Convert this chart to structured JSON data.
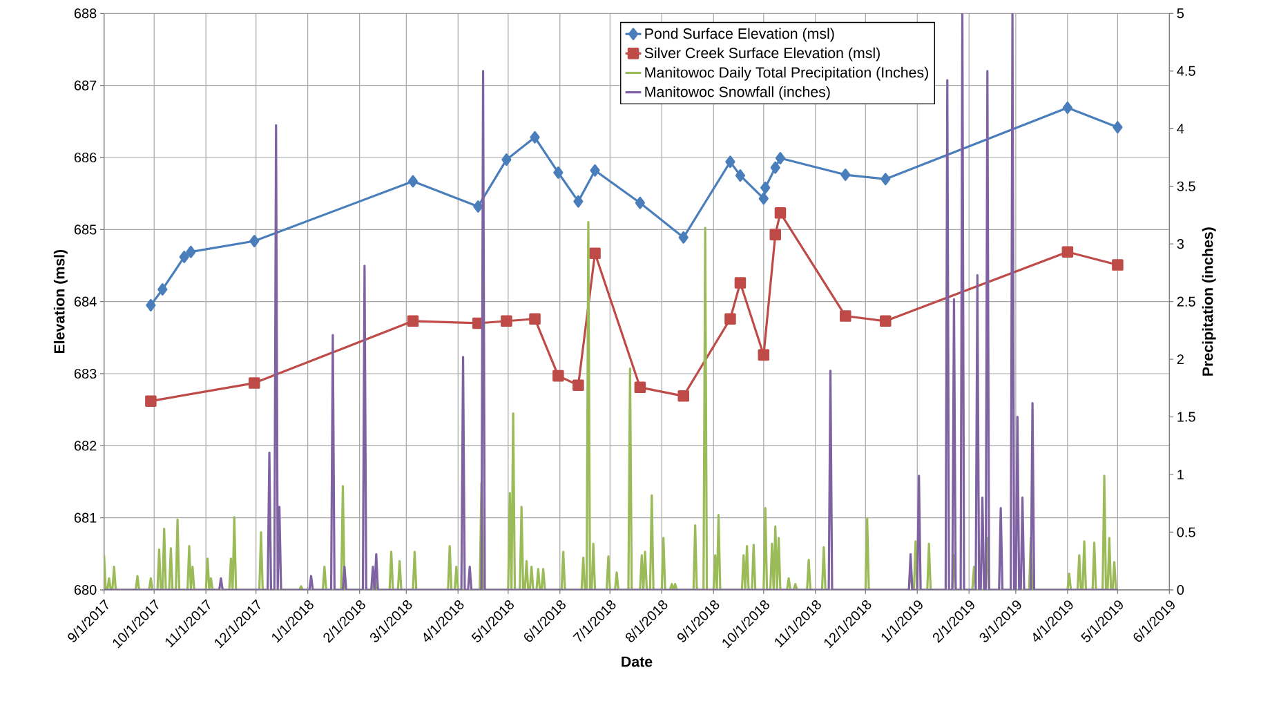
{
  "chart_data": {
    "type": "line",
    "xlabel": "Date",
    "ylabel": "Elevation (msl)",
    "y2label": "Precipitation (inches)",
    "xlim": [
      "2017-09-01",
      "2019-06-01"
    ],
    "xticks": [
      {
        "value": "2017-09-01",
        "label": "9/1/2017"
      },
      {
        "value": "2017-10-01",
        "label": "10/1/2017"
      },
      {
        "value": "2017-11-01",
        "label": "11/1/2017"
      },
      {
        "value": "2017-12-01",
        "label": "12/1/2017"
      },
      {
        "value": "2018-01-01",
        "label": "1/1/2018"
      },
      {
        "value": "2018-02-01",
        "label": "2/1/2018"
      },
      {
        "value": "2018-03-01",
        "label": "3/1/2018"
      },
      {
        "value": "2018-04-01",
        "label": "4/1/2018"
      },
      {
        "value": "2018-05-01",
        "label": "5/1/2018"
      },
      {
        "value": "2018-06-01",
        "label": "6/1/2018"
      },
      {
        "value": "2018-07-01",
        "label": "7/1/2018"
      },
      {
        "value": "2018-08-01",
        "label": "8/1/2018"
      },
      {
        "value": "2018-09-01",
        "label": "9/1/2018"
      },
      {
        "value": "2018-10-01",
        "label": "10/1/2018"
      },
      {
        "value": "2018-11-01",
        "label": "11/1/2018"
      },
      {
        "value": "2018-12-01",
        "label": "12/1/2018"
      },
      {
        "value": "2019-01-01",
        "label": "1/1/2019"
      },
      {
        "value": "2019-02-01",
        "label": "2/1/2019"
      },
      {
        "value": "2019-03-01",
        "label": "3/1/2019"
      },
      {
        "value": "2019-04-01",
        "label": "4/1/2019"
      },
      {
        "value": "2019-05-01",
        "label": "5/1/2019"
      },
      {
        "value": "2019-06-01",
        "label": "6/1/2019"
      }
    ],
    "ylim": [
      680,
      688
    ],
    "yticks": [
      680,
      681,
      682,
      683,
      684,
      685,
      686,
      687,
      688
    ],
    "y2lim": [
      0,
      5
    ],
    "y2ticks": [
      0,
      0.5,
      1,
      1.5,
      2,
      2.5,
      3,
      3.5,
      4,
      4.5,
      5
    ],
    "grid": true,
    "legend": "top right",
    "series": [
      {
        "name": "Pond Surface Elevation (msl)",
        "color": "#4a7ebb",
        "marker": "diamond",
        "x": [
          "2017-09-29",
          "2017-10-06",
          "2017-10-19",
          "2017-10-23",
          "2017-11-30",
          "2018-03-05",
          "2018-04-13",
          "2018-04-30",
          "2018-05-17",
          "2018-05-31",
          "2018-06-12",
          "2018-06-22",
          "2018-07-19",
          "2018-08-14",
          "2018-09-11",
          "2018-09-17",
          "2018-10-01",
          "2018-10-02",
          "2018-10-08",
          "2018-10-11",
          "2018-11-19",
          "2018-12-13",
          "2019-04-01",
          "2019-05-01"
        ],
        "values": [
          683.95,
          684.17,
          684.62,
          684.69,
          684.84,
          685.67,
          685.32,
          685.97,
          686.28,
          685.79,
          685.39,
          685.82,
          685.37,
          684.89,
          685.94,
          685.75,
          685.43,
          685.58,
          685.86,
          685.99,
          685.76,
          685.7,
          686.69,
          686.42
        ]
      },
      {
        "name": "Silver Creek Surface Elevation (msl)",
        "color": "#be4b48",
        "marker": "square",
        "x": [
          "2017-09-29",
          "2017-11-30",
          "2018-03-05",
          "2018-04-13",
          "2018-04-30",
          "2018-05-17",
          "2018-05-31",
          "2018-06-12",
          "2018-06-22",
          "2018-07-19",
          "2018-08-14",
          "2018-09-11",
          "2018-09-17",
          "2018-10-01",
          "2018-10-08",
          "2018-10-11",
          "2018-11-19",
          "2018-12-13",
          "2019-04-01",
          "2019-05-01"
        ],
        "values": [
          682.62,
          682.87,
          683.73,
          683.7,
          683.73,
          683.76,
          682.97,
          682.84,
          684.67,
          682.81,
          682.69,
          683.76,
          684.26,
          683.26,
          684.93,
          685.23,
          683.8,
          683.73,
          684.69,
          684.51
        ]
      },
      {
        "name": "Manitowoc Daily Total Precipitation (Inches)",
        "color": "#9bbb59",
        "axis": "y2",
        "x": [
          "2017-09-01",
          "2017-09-02",
          "2017-09-03",
          "2017-09-04",
          "2017-09-05",
          "2017-09-06",
          "2017-09-07",
          "2017-09-08",
          "2017-09-20",
          "2017-09-21",
          "2017-09-22",
          "2017-09-28",
          "2017-09-29",
          "2017-09-30",
          "2017-10-03",
          "2017-10-04",
          "2017-10-05",
          "2017-10-06",
          "2017-10-07",
          "2017-10-08",
          "2017-10-10",
          "2017-10-11",
          "2017-10-12",
          "2017-10-14",
          "2017-10-15",
          "2017-10-16",
          "2017-10-21",
          "2017-10-22",
          "2017-10-23",
          "2017-10-24",
          "2017-10-25",
          "2017-11-01",
          "2017-11-02",
          "2017-11-03",
          "2017-11-04",
          "2017-11-05",
          "2017-11-15",
          "2017-11-16",
          "2017-11-17",
          "2017-11-18",
          "2017-11-19",
          "2017-12-03",
          "2017-12-04",
          "2017-12-05",
          "2017-12-27",
          "2017-12-28",
          "2017-12-29",
          "2018-01-10",
          "2018-01-11",
          "2018-01-12",
          "2018-01-21",
          "2018-01-22",
          "2018-01-23",
          "2018-02-09",
          "2018-02-10",
          "2018-02-11",
          "2018-02-19",
          "2018-02-20",
          "2018-02-21",
          "2018-02-24",
          "2018-02-25",
          "2018-02-26",
          "2018-03-05",
          "2018-03-06",
          "2018-03-07",
          "2018-03-26",
          "2018-03-27",
          "2018-03-28",
          "2018-03-30",
          "2018-03-31",
          "2018-04-01",
          "2018-04-14",
          "2018-04-15",
          "2018-04-16",
          "2018-05-01",
          "2018-05-02",
          "2018-05-03",
          "2018-05-04",
          "2018-05-05",
          "2018-05-08",
          "2018-05-09",
          "2018-05-10",
          "2018-05-11",
          "2018-05-12",
          "2018-05-13",
          "2018-05-14",
          "2018-05-15",
          "2018-05-16",
          "2018-05-18",
          "2018-05-19",
          "2018-05-20",
          "2018-05-21",
          "2018-05-22",
          "2018-05-23",
          "2018-06-02",
          "2018-06-03",
          "2018-06-04",
          "2018-06-14",
          "2018-06-15",
          "2018-06-16",
          "2018-06-17",
          "2018-06-18",
          "2018-06-19",
          "2018-06-20",
          "2018-06-21",
          "2018-06-22",
          "2018-06-29",
          "2018-06-30",
          "2018-07-01",
          "2018-07-04",
          "2018-07-05",
          "2018-07-06",
          "2018-07-12",
          "2018-07-13",
          "2018-07-14",
          "2018-07-19",
          "2018-07-20",
          "2018-07-21",
          "2018-07-22",
          "2018-07-23",
          "2018-07-25",
          "2018-07-26",
          "2018-07-27",
          "2018-08-01",
          "2018-08-02",
          "2018-08-03",
          "2018-08-06",
          "2018-08-07",
          "2018-08-08",
          "2018-08-09",
          "2018-08-10",
          "2018-08-20",
          "2018-08-21",
          "2018-08-22",
          "2018-08-26",
          "2018-08-27",
          "2018-08-28",
          "2018-09-01",
          "2018-09-02",
          "2018-09-03",
          "2018-09-04",
          "2018-09-05",
          "2018-09-18",
          "2018-09-19",
          "2018-09-20",
          "2018-09-21",
          "2018-09-22",
          "2018-09-24",
          "2018-09-25",
          "2018-09-26",
          "2018-10-01",
          "2018-10-02",
          "2018-10-03",
          "2018-10-05",
          "2018-10-06",
          "2018-10-07",
          "2018-10-08",
          "2018-10-09",
          "2018-10-10",
          "2018-10-11",
          "2018-10-15",
          "2018-10-16",
          "2018-10-17",
          "2018-10-19",
          "2018-10-20",
          "2018-10-21",
          "2018-10-27",
          "2018-10-28",
          "2018-10-29",
          "2018-11-05",
          "2018-11-06",
          "2018-11-07",
          "2018-12-01",
          "2018-12-02",
          "2018-12-03",
          "2018-12-27",
          "2018-12-28",
          "2018-12-29",
          "2018-12-30",
          "2018-12-31",
          "2019-01-01",
          "2019-01-07",
          "2019-01-08",
          "2019-01-09",
          "2019-01-22",
          "2019-01-23",
          "2019-01-24",
          "2019-02-03",
          "2019-02-04",
          "2019-02-05",
          "2019-02-11",
          "2019-02-12",
          "2019-02-13",
          "2019-03-09",
          "2019-03-10",
          "2019-03-11",
          "2019-04-01",
          "2019-04-02",
          "2019-04-03",
          "2019-04-07",
          "2019-04-08",
          "2019-04-09",
          "2019-04-10",
          "2019-04-11",
          "2019-04-12",
          "2019-04-16",
          "2019-04-17",
          "2019-04-18",
          "2019-04-22",
          "2019-04-23",
          "2019-04-24",
          "2019-04-25",
          "2019-04-26",
          "2019-04-27",
          "2019-04-28",
          "2019-04-29",
          "2019-04-30",
          "2019-05-01"
        ],
        "values": [
          0.3,
          0,
          0,
          0.1,
          0,
          0,
          0.2,
          0,
          0,
          0.12,
          0,
          0,
          0.1,
          0,
          0,
          0.35,
          0,
          0,
          0.53,
          0,
          0,
          0.36,
          0,
          0,
          0.61,
          0,
          0,
          0.38,
          0,
          0.2,
          0,
          0,
          0.27,
          0,
          0.1,
          0,
          0,
          0.27,
          0,
          0.63,
          0,
          0,
          0.5,
          0,
          0,
          0.03,
          0,
          0,
          0.2,
          0,
          0,
          0.9,
          0,
          0,
          0.1,
          0,
          0,
          0.33,
          0,
          0,
          0.25,
          0,
          0,
          0.33,
          0,
          0,
          0.38,
          0,
          0,
          0.2,
          0,
          0,
          0.93,
          0,
          0,
          0.84,
          0,
          1.53,
          0,
          0,
          0.72,
          0,
          0,
          0.25,
          0,
          0,
          0.2,
          0,
          0,
          0.18,
          0,
          0,
          0.18,
          0,
          0,
          0.33,
          0,
          0,
          0.28,
          0,
          0,
          3.19,
          0,
          0,
          0.4,
          0,
          0,
          0.29,
          0,
          0,
          0.15,
          0,
          0,
          1.92,
          0,
          0,
          0.3,
          0,
          0.33,
          0,
          0,
          0.82,
          0,
          0,
          0.45,
          0,
          0,
          0.05,
          0,
          0.05,
          0,
          0,
          0.56,
          0,
          0,
          3.14,
          0,
          0,
          0.3,
          0,
          0.65,
          0,
          0,
          0.3,
          0,
          0.38,
          0,
          0,
          0.39,
          0,
          0,
          0.71,
          0,
          0,
          0.4,
          0,
          0.55,
          0,
          0.45,
          0,
          0,
          0.1,
          0,
          0,
          0.05,
          0,
          0,
          0.26,
          0,
          0,
          0.37,
          0,
          0,
          0.62,
          0,
          0,
          0.22,
          0,
          0,
          0.42,
          0,
          0,
          0.4,
          0,
          0,
          0.3,
          0,
          0,
          0.2,
          0,
          0,
          0.45,
          0,
          0,
          0.45,
          0,
          0,
          0.14,
          0,
          0,
          0.3,
          0,
          0,
          0.42,
          0,
          0,
          0.41,
          0,
          0,
          0.99,
          0,
          0,
          0.45,
          0,
          0,
          0.24,
          0,
          0
        ]
      },
      {
        "name": "Manitowoc Snowfall (inches)",
        "color": "#7f62a2",
        "axis": "y2",
        "x": [
          "2017-09-01",
          "2017-11-09",
          "2017-11-10",
          "2017-11-11",
          "2017-12-08",
          "2017-12-09",
          "2017-12-10",
          "2017-12-12",
          "2017-12-13",
          "2017-12-14",
          "2017-12-15",
          "2017-12-16",
          "2018-01-02",
          "2018-01-03",
          "2018-01-04",
          "2018-01-15",
          "2018-01-16",
          "2018-01-17",
          "2018-01-22",
          "2018-01-23",
          "2018-01-24",
          "2018-02-03",
          "2018-02-04",
          "2018-02-05",
          "2018-02-08",
          "2018-02-09",
          "2018-02-10",
          "2018-02-11",
          "2018-02-12",
          "2018-04-03",
          "2018-04-04",
          "2018-04-05",
          "2018-04-07",
          "2018-04-08",
          "2018-04-09",
          "2018-04-15",
          "2018-04-16",
          "2018-04-17",
          "2018-11-09",
          "2018-11-10",
          "2018-11-11",
          "2018-12-27",
          "2018-12-28",
          "2018-12-29",
          "2019-01-01",
          "2019-01-02",
          "2019-01-03",
          "2019-01-18",
          "2019-01-19",
          "2019-01-20",
          "2019-01-22",
          "2019-01-23",
          "2019-01-24",
          "2019-01-27",
          "2019-01-28",
          "2019-01-29",
          "2019-02-05",
          "2019-02-06",
          "2019-02-07",
          "2019-02-08",
          "2019-02-09",
          "2019-02-10",
          "2019-02-11",
          "2019-02-12",
          "2019-02-13",
          "2019-02-19",
          "2019-02-20",
          "2019-02-21",
          "2019-02-26",
          "2019-02-27",
          "2019-02-28",
          "2019-03-01",
          "2019-03-02",
          "2019-03-03",
          "2019-03-04",
          "2019-03-05",
          "2019-03-06",
          "2019-03-10",
          "2019-03-11",
          "2019-03-12",
          "2019-05-01"
        ],
        "values": [
          0,
          0,
          0.1,
          0,
          0,
          1.19,
          0,
          0,
          4.03,
          0,
          0.72,
          0,
          0,
          0.12,
          0,
          0,
          2.21,
          0,
          0,
          0.2,
          0,
          0,
          2.81,
          0,
          0,
          0.2,
          0,
          0.31,
          0,
          0,
          2.02,
          0,
          0,
          0.2,
          0,
          0,
          4.5,
          0,
          0,
          1.9,
          0,
          0,
          0.31,
          0,
          0,
          0.99,
          0,
          0,
          4.42,
          0,
          0,
          2.52,
          0,
          0,
          5,
          0,
          0,
          2.73,
          0,
          0,
          0.8,
          0,
          0,
          4.5,
          0,
          0,
          0.71,
          0,
          0,
          5,
          0,
          0,
          1.5,
          0,
          0,
          0.8,
          0,
          0,
          1.62,
          0,
          0
        ]
      }
    ]
  }
}
